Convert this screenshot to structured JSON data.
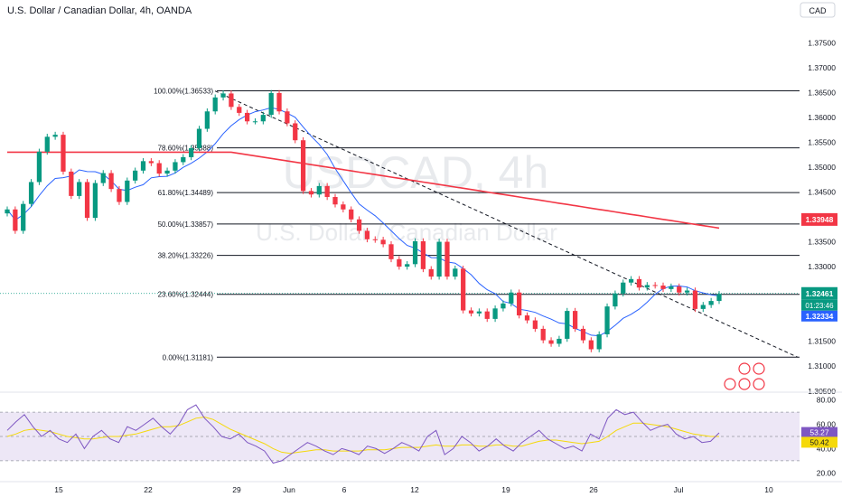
{
  "header": {
    "symbol_title": "U.S. Dollar / Canadian Dollar, 4h, OANDA",
    "currency_button": "CAD"
  },
  "watermark": {
    "ticker": "USDCAD, 4h",
    "name": "U.S. Dollar / Canadian Dollar"
  },
  "colors": {
    "bull": "#089981",
    "bear": "#f23645",
    "ma_fast": "#2962ff",
    "ma_slow": "#f23645",
    "rsi_line": "#7e57c2",
    "rsi_signal": "#f5d90a",
    "rsi_band": "#ede7f6",
    "grid_text": "#131722"
  },
  "chart_data": [
    {
      "type": "candlestick",
      "title": "U.S. Dollar / Canadian Dollar, 4h, OANDA",
      "ylim": [
        1.3055,
        1.3785
      ],
      "y_ticks": [
        "1.37500",
        "1.37000",
        "1.36500",
        "1.36000",
        "1.35500",
        "1.35000",
        "1.34500",
        "1.34000",
        "1.33500",
        "1.33000",
        "1.32500",
        "1.32000",
        "1.31500",
        "1.31000",
        "1.30500"
      ],
      "x_ticks": [
        "15",
        "22",
        "29",
        "Jun",
        "6",
        "12",
        "19",
        "26",
        "Jul",
        "10"
      ],
      "fib_levels": [
        {
          "label": "100.00%(1.36533)",
          "price": 1.36533
        },
        {
          "label": "78.60%(1.35388)",
          "price": 1.35388
        },
        {
          "label": "61.80%(1.34489)",
          "price": 1.34489
        },
        {
          "label": "50.00%(1.33857)",
          "price": 1.33857
        },
        {
          "label": "38.20%(1.33226)",
          "price": 1.33226
        },
        {
          "label": "23.60%(1.32444)",
          "price": 1.32444
        },
        {
          "label": "0.00%(1.31181)",
          "price": 1.31181
        }
      ],
      "closes": [
        1.3415,
        1.3372,
        1.3426,
        1.347,
        1.3531,
        1.3561,
        1.3565,
        1.3491,
        1.3442,
        1.347,
        1.3398,
        1.3468,
        1.3488,
        1.3456,
        1.343,
        1.3473,
        1.3493,
        1.3512,
        1.3508,
        1.3487,
        1.3493,
        1.351,
        1.352,
        1.3538,
        1.3577,
        1.3612,
        1.364,
        1.3648,
        1.3621,
        1.3609,
        1.3592,
        1.3592,
        1.3605,
        1.3649,
        1.3612,
        1.3588,
        1.3554,
        1.3452,
        1.3445,
        1.3462,
        1.344,
        1.3425,
        1.3415,
        1.3395,
        1.3372,
        1.3355,
        1.3354,
        1.3345,
        1.3315,
        1.33,
        1.3305,
        1.3351,
        1.3295,
        1.328,
        1.335,
        1.328,
        1.3296,
        1.3212,
        1.3206,
        1.321,
        1.3195,
        1.3216,
        1.3226,
        1.3248,
        1.3202,
        1.3192,
        1.3175,
        1.3152,
        1.3145,
        1.3155,
        1.3211,
        1.3175,
        1.3152,
        1.3134,
        1.3164,
        1.322,
        1.3246,
        1.3268,
        1.3275,
        1.3258,
        1.3263,
        1.3262,
        1.3255,
        1.326,
        1.3248,
        1.3252,
        1.3215,
        1.3223,
        1.3231,
        1.3245
      ],
      "last_price": "1.32461",
      "countdown": "01:23:46",
      "ma_fast_value": "1.32334",
      "ma_slow_value": "1.33948",
      "trendline": {
        "from": [
          0,
          1.3653
        ],
        "to": [
          1,
          1.3118
        ]
      }
    },
    {
      "type": "line",
      "title": "RSI",
      "ylim": [
        15,
        82
      ],
      "y_ticks": [
        "80.00",
        "60.00",
        "40.00",
        "20.00"
      ],
      "band": [
        30,
        70
      ],
      "middle": 50,
      "rsi_value": "53.27",
      "signal_value": "50.42",
      "rsi": [
        55,
        62,
        68,
        58,
        50,
        55,
        48,
        45,
        52,
        40,
        50,
        55,
        48,
        45,
        58,
        55,
        60,
        65,
        58,
        52,
        60,
        72,
        76,
        65,
        58,
        50,
        48,
        52,
        45,
        42,
        38,
        28,
        30,
        35,
        40,
        45,
        42,
        38,
        35,
        40,
        38,
        35,
        42,
        40,
        36,
        40,
        45,
        42,
        38,
        50,
        55,
        35,
        40,
        50,
        45,
        38,
        42,
        48,
        42,
        38,
        45,
        50,
        55,
        48,
        44,
        40,
        42,
        38,
        52,
        48,
        65,
        72,
        68,
        70,
        62,
        55,
        58,
        60,
        52,
        48,
        50,
        45,
        46,
        53
      ],
      "signal": [
        50,
        52,
        55,
        56,
        55,
        54,
        52,
        50,
        49,
        48,
        48,
        49,
        50,
        50,
        51,
        52,
        54,
        56,
        58,
        58,
        59,
        62,
        65,
        66,
        64,
        60,
        56,
        53,
        50,
        47,
        44,
        40,
        37,
        36,
        37,
        38,
        39,
        39,
        38,
        38,
        38,
        38,
        39,
        39,
        39,
        40,
        41,
        41,
        41,
        42,
        43,
        42,
        42,
        43,
        43,
        42,
        42,
        43,
        43,
        42,
        42,
        44,
        46,
        47,
        47,
        46,
        45,
        44,
        45,
        46,
        50,
        55,
        58,
        61,
        61,
        60,
        59,
        58,
        56,
        54,
        52,
        51,
        50,
        50
      ]
    }
  ]
}
